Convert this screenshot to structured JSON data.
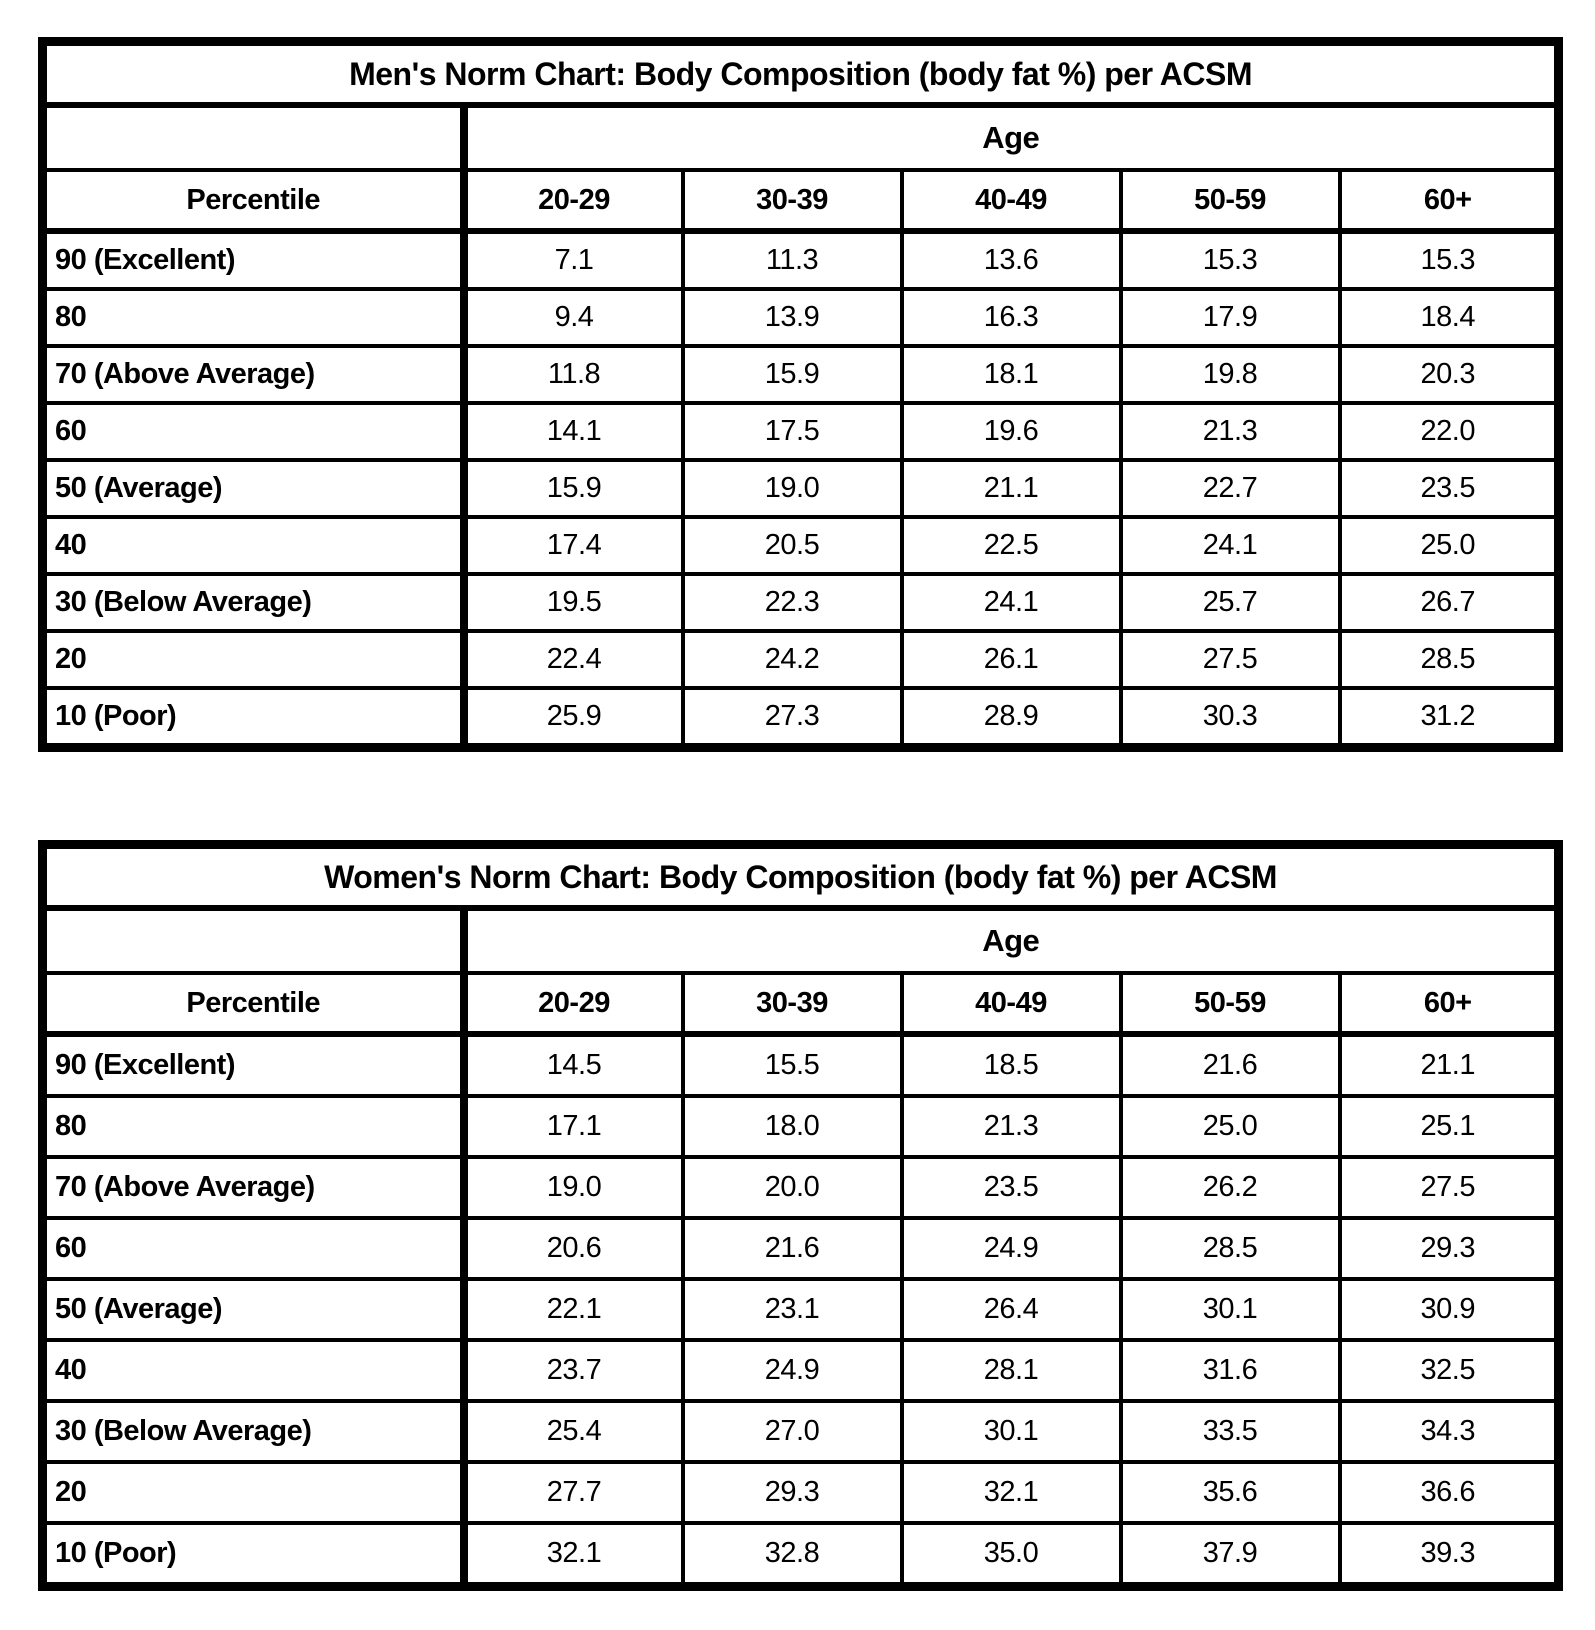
{
  "page": {
    "colors": {
      "background": "#ffffff",
      "text": "#000000",
      "border": "#000000"
    }
  },
  "tables": [
    {
      "title": "Men's Norm Chart: Body Composition (body fat %) per ACSM",
      "age_header": "Age",
      "percentile_header": "Percentile",
      "age_columns": [
        "20-29",
        "30-39",
        "40-49",
        "50-59",
        "60+"
      ],
      "rows": [
        {
          "label": "90 (Excellent)",
          "values": [
            "7.1",
            "11.3",
            "13.6",
            "15.3",
            "15.3"
          ]
        },
        {
          "label": "80",
          "values": [
            "9.4",
            "13.9",
            "16.3",
            "17.9",
            "18.4"
          ]
        },
        {
          "label": "70 (Above Average)",
          "values": [
            "11.8",
            "15.9",
            "18.1",
            "19.8",
            "20.3"
          ]
        },
        {
          "label": "60",
          "values": [
            "14.1",
            "17.5",
            "19.6",
            "21.3",
            "22.0"
          ]
        },
        {
          "label": "50 (Average)",
          "values": [
            "15.9",
            "19.0",
            "21.1",
            "22.7",
            "23.5"
          ]
        },
        {
          "label": "40",
          "values": [
            "17.4",
            "20.5",
            "22.5",
            "24.1",
            "25.0"
          ]
        },
        {
          "label": "30 (Below Average)",
          "values": [
            "19.5",
            "22.3",
            "24.1",
            "25.7",
            "26.7"
          ]
        },
        {
          "label": "20",
          "values": [
            "22.4",
            "24.2",
            "26.1",
            "27.5",
            "28.5"
          ]
        },
        {
          "label": "10 (Poor)",
          "values": [
            "25.9",
            "27.3",
            "28.9",
            "30.3",
            "31.2"
          ]
        }
      ]
    },
    {
      "title": "Women's Norm Chart: Body Composition (body fat %) per ACSM",
      "age_header": "Age",
      "percentile_header": "Percentile",
      "age_columns": [
        "20-29",
        "30-39",
        "40-49",
        "50-59",
        "60+"
      ],
      "rows": [
        {
          "label": "90 (Excellent)",
          "values": [
            "14.5",
            "15.5",
            "18.5",
            "21.6",
            "21.1"
          ]
        },
        {
          "label": "80",
          "values": [
            "17.1",
            "18.0",
            "21.3",
            "25.0",
            "25.1"
          ]
        },
        {
          "label": "70 (Above Average)",
          "values": [
            "19.0",
            "20.0",
            "23.5",
            "26.2",
            "27.5"
          ]
        },
        {
          "label": "60",
          "values": [
            "20.6",
            "21.6",
            "24.9",
            "28.5",
            "29.3"
          ]
        },
        {
          "label": "50 (Average)",
          "values": [
            "22.1",
            "23.1",
            "26.4",
            "30.1",
            "30.9"
          ]
        },
        {
          "label": "40",
          "values": [
            "23.7",
            "24.9",
            "28.1",
            "31.6",
            "32.5"
          ]
        },
        {
          "label": "30 (Below Average)",
          "values": [
            "25.4",
            "27.0",
            "30.1",
            "33.5",
            "34.3"
          ]
        },
        {
          "label": "20",
          "values": [
            "27.7",
            "29.3",
            "32.1",
            "35.6",
            "36.6"
          ]
        },
        {
          "label": "10 (Poor)",
          "values": [
            "32.1",
            "32.8",
            "35.0",
            "37.9",
            "39.3"
          ]
        }
      ]
    }
  ],
  "chart_data": [
    {
      "type": "table",
      "title": "Men's Norm Chart: Body Composition (body fat %) per ACSM",
      "columns": [
        "Percentile",
        "20-29",
        "30-39",
        "40-49",
        "50-59",
        "60+"
      ],
      "rows": [
        [
          "90 (Excellent)",
          7.1,
          11.3,
          13.6,
          15.3,
          15.3
        ],
        [
          "80",
          9.4,
          13.9,
          16.3,
          17.9,
          18.4
        ],
        [
          "70 (Above Average)",
          11.8,
          15.9,
          18.1,
          19.8,
          20.3
        ],
        [
          "60",
          14.1,
          17.5,
          19.6,
          21.3,
          22.0
        ],
        [
          "50 (Average)",
          15.9,
          19.0,
          21.1,
          22.7,
          23.5
        ],
        [
          "40",
          17.4,
          20.5,
          22.5,
          24.1,
          25.0
        ],
        [
          "30 (Below Average)",
          19.5,
          22.3,
          24.1,
          25.7,
          26.7
        ],
        [
          "20",
          22.4,
          24.2,
          26.1,
          27.5,
          28.5
        ],
        [
          "10 (Poor)",
          25.9,
          27.3,
          28.9,
          30.3,
          31.2
        ]
      ]
    },
    {
      "type": "table",
      "title": "Women's Norm Chart: Body Composition (body fat %) per ACSM",
      "columns": [
        "Percentile",
        "20-29",
        "30-39",
        "40-49",
        "50-59",
        "60+"
      ],
      "rows": [
        [
          "90 (Excellent)",
          14.5,
          15.5,
          18.5,
          21.6,
          21.1
        ],
        [
          "80",
          17.1,
          18.0,
          21.3,
          25.0,
          25.1
        ],
        [
          "70 (Above Average)",
          19.0,
          20.0,
          23.5,
          26.2,
          27.5
        ],
        [
          "60",
          20.6,
          21.6,
          24.9,
          28.5,
          29.3
        ],
        [
          "50 (Average)",
          22.1,
          23.1,
          26.4,
          30.1,
          30.9
        ],
        [
          "40",
          23.7,
          24.9,
          28.1,
          31.6,
          32.5
        ],
        [
          "30 (Below Average)",
          25.4,
          27.0,
          30.1,
          33.5,
          34.3
        ],
        [
          "20",
          27.7,
          29.3,
          32.1,
          35.6,
          36.6
        ],
        [
          "10 (Poor)",
          32.1,
          32.8,
          35.0,
          37.9,
          39.3
        ]
      ]
    }
  ]
}
